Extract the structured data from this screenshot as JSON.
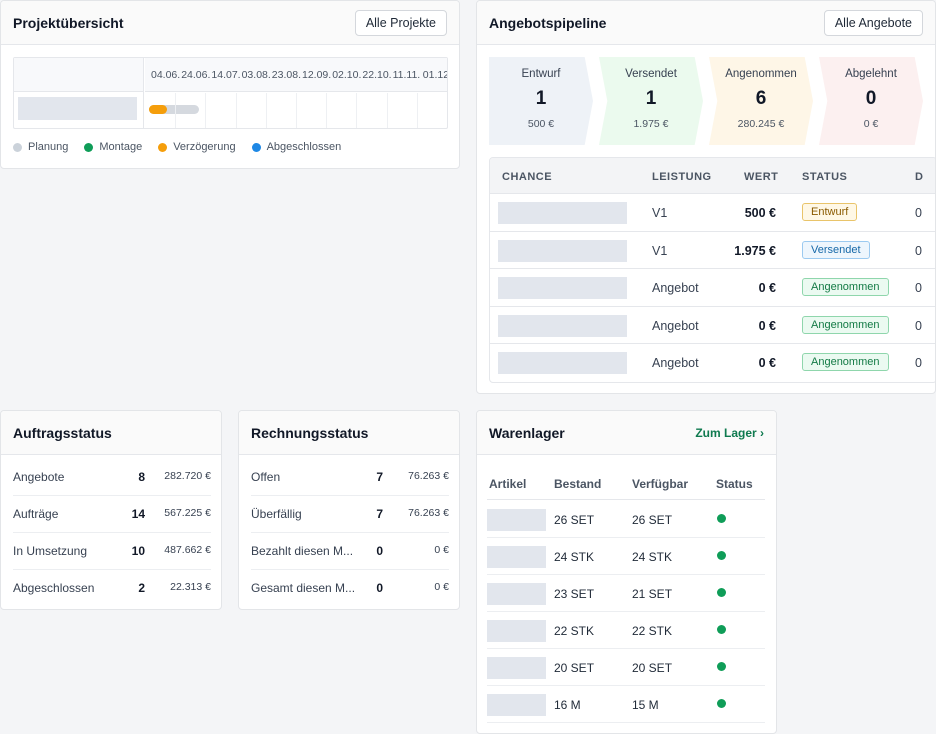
{
  "projects": {
    "title": "Projektübersicht",
    "button": "Alle Projekte",
    "dates": [
      "04.06.",
      "24.06.",
      "14.07.",
      "03.08.",
      "23.08.",
      "12.09.",
      "02.10.",
      "22.10.",
      "11.11.",
      "01.12"
    ],
    "legend": [
      {
        "label": "Planung",
        "color": "#cbd2da"
      },
      {
        "label": "Montage",
        "color": "#0f9d58"
      },
      {
        "label": "Verzögerung",
        "color": "#f59e0b"
      },
      {
        "label": "Abgeschlossen",
        "color": "#1e88e5"
      }
    ]
  },
  "pipeline": {
    "title": "Angebotspipeline",
    "button": "Alle Angebote",
    "stages": [
      {
        "label": "Entwurf",
        "count": "1",
        "amount": "500 €",
        "color": "#eef2f7"
      },
      {
        "label": "Versendet",
        "count": "1",
        "amount": "1.975 €",
        "color": "#ebfaee"
      },
      {
        "label": "Angenommen",
        "count": "6",
        "amount": "280.245 €",
        "color": "#fef6e7"
      },
      {
        "label": "Abgelehnt",
        "count": "0",
        "amount": "0 €",
        "color": "#fcf0f0"
      }
    ],
    "columns": [
      "CHANCE",
      "LEISTUNG",
      "WERT",
      "STATUS",
      "D"
    ],
    "rows": [
      {
        "leistung": "V1",
        "wert": "500 €",
        "status": "Entwurf",
        "tail": "0"
      },
      {
        "leistung": "V1",
        "wert": "1.975 €",
        "status": "Versendet",
        "tail": "0"
      },
      {
        "leistung": "Angebot",
        "wert": "0 €",
        "status": "Angenommen",
        "tail": "0"
      },
      {
        "leistung": "Angebot",
        "wert": "0 €",
        "status": "Angenommen",
        "tail": "0"
      },
      {
        "leistung": "Angebot",
        "wert": "0 €",
        "status": "Angenommen",
        "tail": "0"
      }
    ],
    "badge_colors": {
      "Entwurf": {
        "bg": "#fff8e6",
        "border": "#e9c46a",
        "text": "#8a5a00"
      },
      "Versendet": {
        "bg": "#eef6fd",
        "border": "#9ccaf0",
        "text": "#1668a8"
      },
      "Angenommen": {
        "bg": "#ebfaf1",
        "border": "#8fd6ac",
        "text": "#137a45"
      }
    }
  },
  "auftrag": {
    "title": "Auftragsstatus",
    "rows": [
      {
        "label": "Angebote",
        "count": "8",
        "amount": "282.720 €"
      },
      {
        "label": "Aufträge",
        "count": "14",
        "amount": "567.225 €"
      },
      {
        "label": "In Umsetzung",
        "count": "10",
        "amount": "487.662 €"
      },
      {
        "label": "Abgeschlossen",
        "count": "2",
        "amount": "22.313 €"
      }
    ]
  },
  "rechnung": {
    "title": "Rechnungsstatus",
    "rows": [
      {
        "label": "Offen",
        "count": "7",
        "amount": "76.263 €"
      },
      {
        "label": "Überfällig",
        "count": "7",
        "amount": "76.263 €"
      },
      {
        "label": "Bezahlt diesen M...",
        "count": "0",
        "amount": "0 €"
      },
      {
        "label": "Gesamt diesen M...",
        "count": "0",
        "amount": "0 €"
      }
    ]
  },
  "lager": {
    "title": "Warenlager",
    "link": "Zum Lager ›",
    "columns": [
      "Artikel",
      "Bestand",
      "Verfügbar",
      "Status"
    ],
    "status_color": "#0f9d58",
    "rows": [
      {
        "bestand": "26 SET",
        "verfuegbar": "26 SET"
      },
      {
        "bestand": "24 STK",
        "verfuegbar": "24 STK"
      },
      {
        "bestand": "23 SET",
        "verfuegbar": "21 SET"
      },
      {
        "bestand": "22 STK",
        "verfuegbar": "22 STK"
      },
      {
        "bestand": "20 SET",
        "verfuegbar": "20 SET"
      },
      {
        "bestand": "16 M",
        "verfuegbar": "15 M"
      }
    ]
  }
}
